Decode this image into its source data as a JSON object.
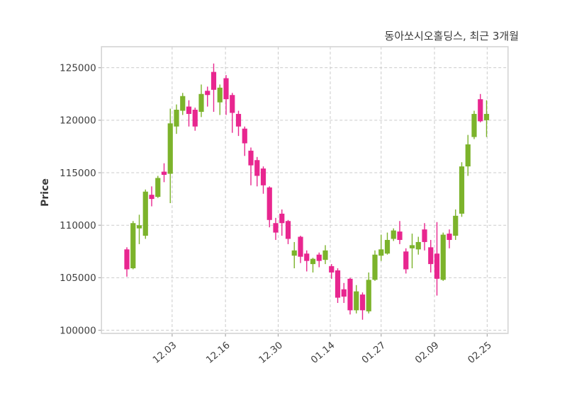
{
  "chart_data": {
    "type": "candlestick",
    "title": "동아쏘시오홀딩스, 최근 3개월",
    "ylabel": "Price",
    "ylim": [
      99700,
      127000
    ],
    "y_ticks": [
      100000,
      105000,
      110000,
      115000,
      120000,
      125000
    ],
    "x_tick_labels": [
      "12.03",
      "12.16",
      "12.30",
      "01.14",
      "01.27",
      "02.09",
      "02.25"
    ],
    "x_tick_candle_index": [
      7.3,
      15.9,
      24.4,
      32.8,
      41.0,
      49.6,
      58.1
    ],
    "grid": true,
    "legend_position": "none",
    "colors": {
      "up": "#7cb32b",
      "down": "#e8268f",
      "grid": "#cbcbcb",
      "spine": "#d4d4d4",
      "tick": "#a8a8a8",
      "text": "#3f3f3f",
      "background": "#ffffff"
    },
    "candle_format": "[open, high, low, close]",
    "candles": [
      [
        107700,
        107900,
        105100,
        105800
      ],
      [
        105900,
        110400,
        105800,
        110200
      ],
      [
        109700,
        111000,
        108200,
        110000
      ],
      [
        109000,
        113400,
        108700,
        113200
      ],
      [
        112900,
        113700,
        111800,
        112500
      ],
      [
        112700,
        114700,
        112600,
        114500
      ],
      [
        115100,
        115900,
        114100,
        114800
      ],
      [
        114900,
        121100,
        112100,
        119700
      ],
      [
        119400,
        121500,
        118700,
        121000
      ],
      [
        120900,
        122600,
        120500,
        122300
      ],
      [
        121300,
        121900,
        119400,
        120600
      ],
      [
        121000,
        121200,
        119000,
        119400
      ],
      [
        120800,
        123400,
        120300,
        122500
      ],
      [
        122800,
        123200,
        121300,
        122400
      ],
      [
        124600,
        125400,
        120800,
        122900
      ],
      [
        121700,
        123400,
        120500,
        123100
      ],
      [
        124000,
        124300,
        120500,
        122000
      ],
      [
        122400,
        122600,
        118800,
        120700
      ],
      [
        120600,
        120900,
        118500,
        119400
      ],
      [
        119200,
        119400,
        116600,
        117800
      ],
      [
        117100,
        117400,
        113800,
        115700
      ],
      [
        116200,
        116500,
        113700,
        114700
      ],
      [
        115400,
        115600,
        113000,
        113800
      ],
      [
        113600,
        113700,
        109800,
        110500
      ],
      [
        110200,
        110700,
        108600,
        109300
      ],
      [
        111100,
        111500,
        109000,
        110200
      ],
      [
        110400,
        110500,
        108200,
        108700
      ],
      [
        107100,
        108400,
        105900,
        107600
      ],
      [
        108900,
        109000,
        106400,
        107000
      ],
      [
        107300,
        107600,
        105600,
        106600
      ],
      [
        106300,
        106900,
        105500,
        106800
      ],
      [
        107200,
        107400,
        106000,
        106600
      ],
      [
        106700,
        108100,
        106300,
        107600
      ],
      [
        106100,
        106300,
        104900,
        105500
      ],
      [
        105700,
        105900,
        102600,
        103100
      ],
      [
        103900,
        104500,
        102600,
        103200
      ],
      [
        104900,
        105000,
        101500,
        101900
      ],
      [
        101900,
        104300,
        101600,
        103700
      ],
      [
        103400,
        103600,
        101000,
        101900
      ],
      [
        101800,
        105500,
        101600,
        104800
      ],
      [
        104800,
        107600,
        104700,
        107200
      ],
      [
        107100,
        109100,
        106600,
        107700
      ],
      [
        107300,
        109300,
        107200,
        108600
      ],
      [
        108700,
        109700,
        108500,
        109500
      ],
      [
        109400,
        110400,
        108200,
        108600
      ],
      [
        107500,
        107800,
        105400,
        105800
      ],
      [
        107800,
        109200,
        105900,
        108100
      ],
      [
        107700,
        108900,
        107200,
        108400
      ],
      [
        109600,
        110200,
        107600,
        108400
      ],
      [
        107900,
        108600,
        105500,
        106300
      ],
      [
        107300,
        110300,
        103300,
        104900
      ],
      [
        104800,
        109300,
        104700,
        109100
      ],
      [
        109200,
        109600,
        107800,
        108600
      ],
      [
        109000,
        111500,
        108600,
        110900
      ],
      [
        111100,
        116000,
        110800,
        115600
      ],
      [
        115600,
        118600,
        114700,
        117700
      ],
      [
        118400,
        120900,
        118200,
        120600
      ],
      [
        122000,
        122500,
        119800,
        119900
      ],
      [
        120000,
        121900,
        118400,
        120600
      ]
    ]
  }
}
